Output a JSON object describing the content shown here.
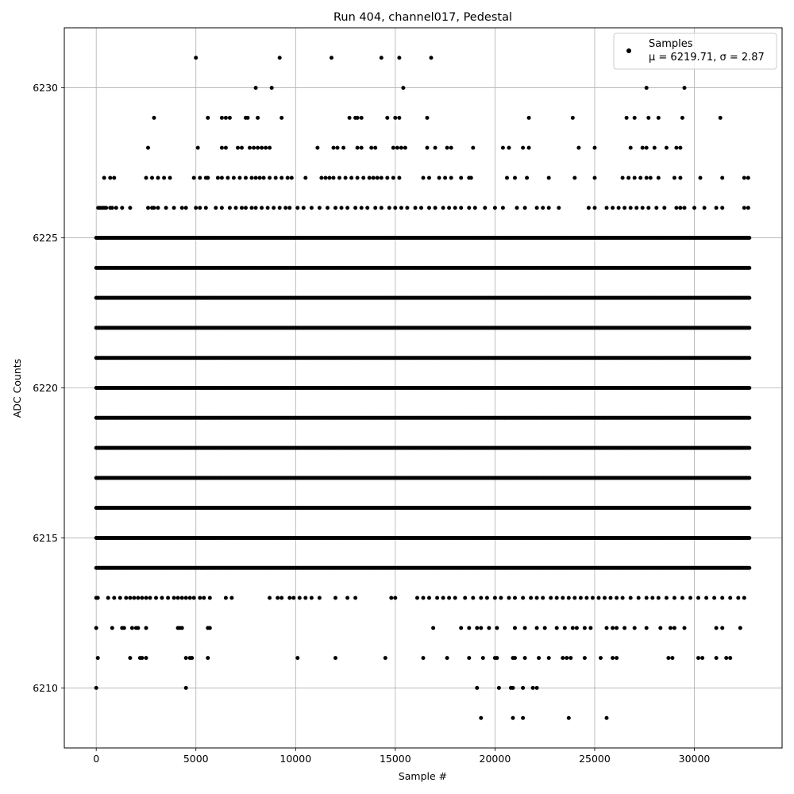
{
  "chart_data": {
    "type": "scatter",
    "title": "Run 404, channel017, Pedestal",
    "xlabel": "Sample #",
    "ylabel": "ADC Counts",
    "xlim": [
      -1600,
      34400
    ],
    "ylim": [
      6208,
      6232
    ],
    "xticks": [
      0,
      5000,
      10000,
      15000,
      20000,
      25000,
      30000
    ],
    "yticks": [
      6210,
      6215,
      6220,
      6225,
      6230
    ],
    "grid": true,
    "legend": {
      "placement": "top-right",
      "label": "Samples",
      "stats": "μ = 6219.71, σ = 2.87"
    },
    "marker_color": "#000000",
    "x_range": [
      0,
      32767
    ],
    "dense_levels": [
      6214,
      6215,
      6216,
      6217,
      6218,
      6219,
      6220,
      6221,
      6222,
      6223,
      6224,
      6225
    ],
    "sparse_levels": [
      {
        "y": 6213,
        "x": [
          0,
          80,
          600,
          900,
          1200,
          1500,
          1700,
          1900,
          2100,
          2300,
          2500,
          2700,
          3000,
          3300,
          3600,
          3900,
          4100,
          4300,
          4500,
          4700,
          4900,
          5200,
          5400,
          5700,
          6500,
          6800,
          8700,
          9100,
          9300,
          9700,
          9900,
          10200,
          10500,
          10800,
          11200,
          12000,
          12600,
          13000,
          14800,
          15000,
          16100,
          16400,
          16700,
          17100,
          17400,
          17700,
          18000,
          18500,
          18900,
          19300,
          19600,
          20000,
          20300,
          20700,
          21000,
          21400,
          21800,
          22100,
          22400,
          22800,
          23100,
          23400,
          23700,
          24000,
          24300,
          24600,
          24900,
          25200,
          25500,
          25800,
          26100,
          26400,
          26800,
          27200,
          27600,
          27900,
          28200,
          28600,
          29000,
          29400,
          29800,
          30200,
          30600,
          31000,
          31400,
          31800,
          32200,
          32500
        ]
      },
      {
        "y": 6212,
        "x": [
          0,
          800,
          1300,
          1400,
          1800,
          2000,
          2100,
          2500,
          4100,
          4200,
          4300,
          5600,
          5700,
          16900,
          18300,
          18700,
          19100,
          19300,
          19700,
          20100,
          21000,
          21500,
          22100,
          22500,
          23100,
          23500,
          23900,
          24100,
          24500,
          24800,
          25600,
          25900,
          26100,
          26500,
          27000,
          27600,
          28300,
          28800,
          29000,
          29500,
          31100,
          31400,
          32300
        ]
      },
      {
        "y": 6211,
        "x": [
          80,
          1700,
          2200,
          2300,
          2500,
          4500,
          4700,
          4800,
          5600,
          10100,
          12000,
          14500,
          16400,
          17600,
          18700,
          19400,
          20000,
          20100,
          20900,
          21000,
          21500,
          22200,
          22700,
          23400,
          23600,
          23800,
          24500,
          25300,
          25900,
          26100,
          28700,
          28900,
          30200,
          30400,
          31100,
          31600,
          31800
        ]
      },
      {
        "y": 6210,
        "x": [
          0,
          4500,
          19100,
          20200,
          20800,
          20900,
          21400,
          21900,
          22100
        ]
      },
      {
        "y": 6209,
        "x": [
          19300,
          20900,
          21400,
          23700,
          25600
        ]
      },
      {
        "y": 6226,
        "x": [
          100,
          200,
          300,
          400,
          500,
          700,
          800,
          1000,
          1300,
          1700,
          2600,
          2800,
          2900,
          3100,
          3500,
          3900,
          4300,
          4500,
          5000,
          5200,
          5500,
          6000,
          6300,
          6700,
          7000,
          7300,
          7500,
          7800,
          8000,
          8300,
          8600,
          8900,
          9200,
          9500,
          9700,
          10100,
          10400,
          10800,
          11200,
          11600,
          12000,
          12300,
          12600,
          13000,
          13300,
          13600,
          14000,
          14300,
          14700,
          15000,
          15300,
          15600,
          16000,
          16300,
          16700,
          17000,
          17400,
          17700,
          18000,
          18300,
          18700,
          19000,
          19500,
          20000,
          20400,
          21100,
          21500,
          22100,
          22400,
          22700,
          23200,
          24700,
          25000,
          25600,
          25900,
          26200,
          26500,
          26800,
          27100,
          27400,
          27700,
          28100,
          28500,
          29100,
          29300,
          29500,
          30000,
          30500,
          31100,
          31400,
          32500,
          32700
        ]
      },
      {
        "y": 6227,
        "x": [
          400,
          700,
          900,
          2500,
          2800,
          3100,
          3400,
          3700,
          4900,
          5200,
          5500,
          5600,
          6100,
          6300,
          6600,
          6900,
          7200,
          7500,
          7800,
          8000,
          8200,
          8400,
          8700,
          9000,
          9300,
          9600,
          9800,
          10500,
          11300,
          11500,
          11700,
          11900,
          12200,
          12500,
          12800,
          13100,
          13400,
          13700,
          13900,
          14100,
          14300,
          14600,
          14900,
          15200,
          16400,
          16700,
          17200,
          17500,
          17800,
          18300,
          18700,
          18800,
          20600,
          21000,
          21600,
          22700,
          24000,
          25000,
          26400,
          26700,
          27000,
          27300,
          27600,
          27800,
          28200,
          29000,
          29300,
          30300,
          31400,
          32500,
          32700
        ]
      },
      {
        "y": 6228,
        "x": [
          2600,
          5100,
          6300,
          6500,
          7100,
          7300,
          7700,
          7900,
          8100,
          8300,
          8500,
          8700,
          11100,
          11900,
          12100,
          12400,
          13100,
          13300,
          13800,
          14000,
          14900,
          15100,
          15300,
          15500,
          16600,
          17000,
          17600,
          17800,
          18900,
          20400,
          20700,
          21400,
          21700,
          24200,
          25000,
          26800,
          27400,
          27600,
          28000,
          28600,
          29100,
          29300
        ]
      },
      {
        "y": 6229,
        "x": [
          2900,
          5600,
          6300,
          6500,
          6700,
          7500,
          7600,
          8100,
          9300,
          12700,
          13000,
          13100,
          13300,
          14600,
          15000,
          15200,
          16600,
          21700,
          23900,
          26600,
          27000,
          27700,
          28200,
          29400,
          31300
        ]
      },
      {
        "y": 6230,
        "x": [
          8000,
          8800,
          15400,
          27600,
          29500
        ]
      },
      {
        "y": 6231,
        "x": [
          5000,
          9200,
          11800,
          14300,
          15200,
          16800
        ]
      }
    ]
  }
}
